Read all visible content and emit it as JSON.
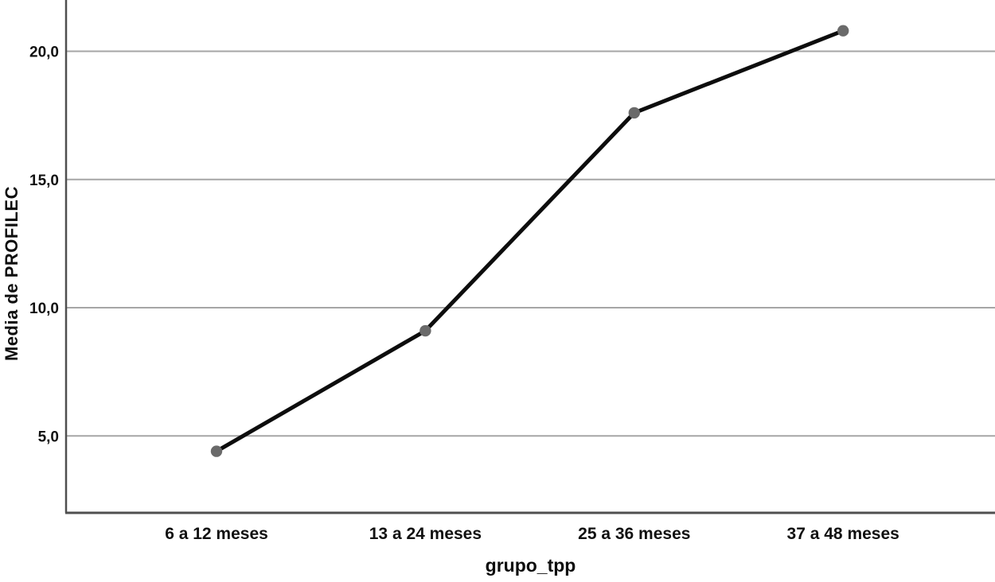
{
  "chart_data": {
    "type": "line",
    "title": "",
    "xlabel": "grupo_tpp",
    "ylabel": "Media de PROFILEC",
    "categories": [
      "6 a 12 meses",
      "13 a 24 meses",
      "25 a 36 meses",
      "37 a 48 meses"
    ],
    "series": [
      {
        "name": "Media de PROFILEC",
        "values": [
          4.4,
          9.1,
          17.6,
          20.8
        ]
      }
    ],
    "yticks": [
      {
        "value": 5,
        "label": "5,0"
      },
      {
        "value": 10,
        "label": "10,0"
      },
      {
        "value": 15,
        "label": "15,0"
      },
      {
        "value": 20,
        "label": "20,0"
      }
    ],
    "ylim": [
      2.0,
      22.0
    ],
    "grid": true,
    "legend": "none",
    "colors": {
      "line": "#0d0d0d",
      "marker": "#6a6a6a",
      "axis": "#4f4f4f",
      "gridline": "#a6a6a6",
      "tick_text": "#111111"
    }
  }
}
